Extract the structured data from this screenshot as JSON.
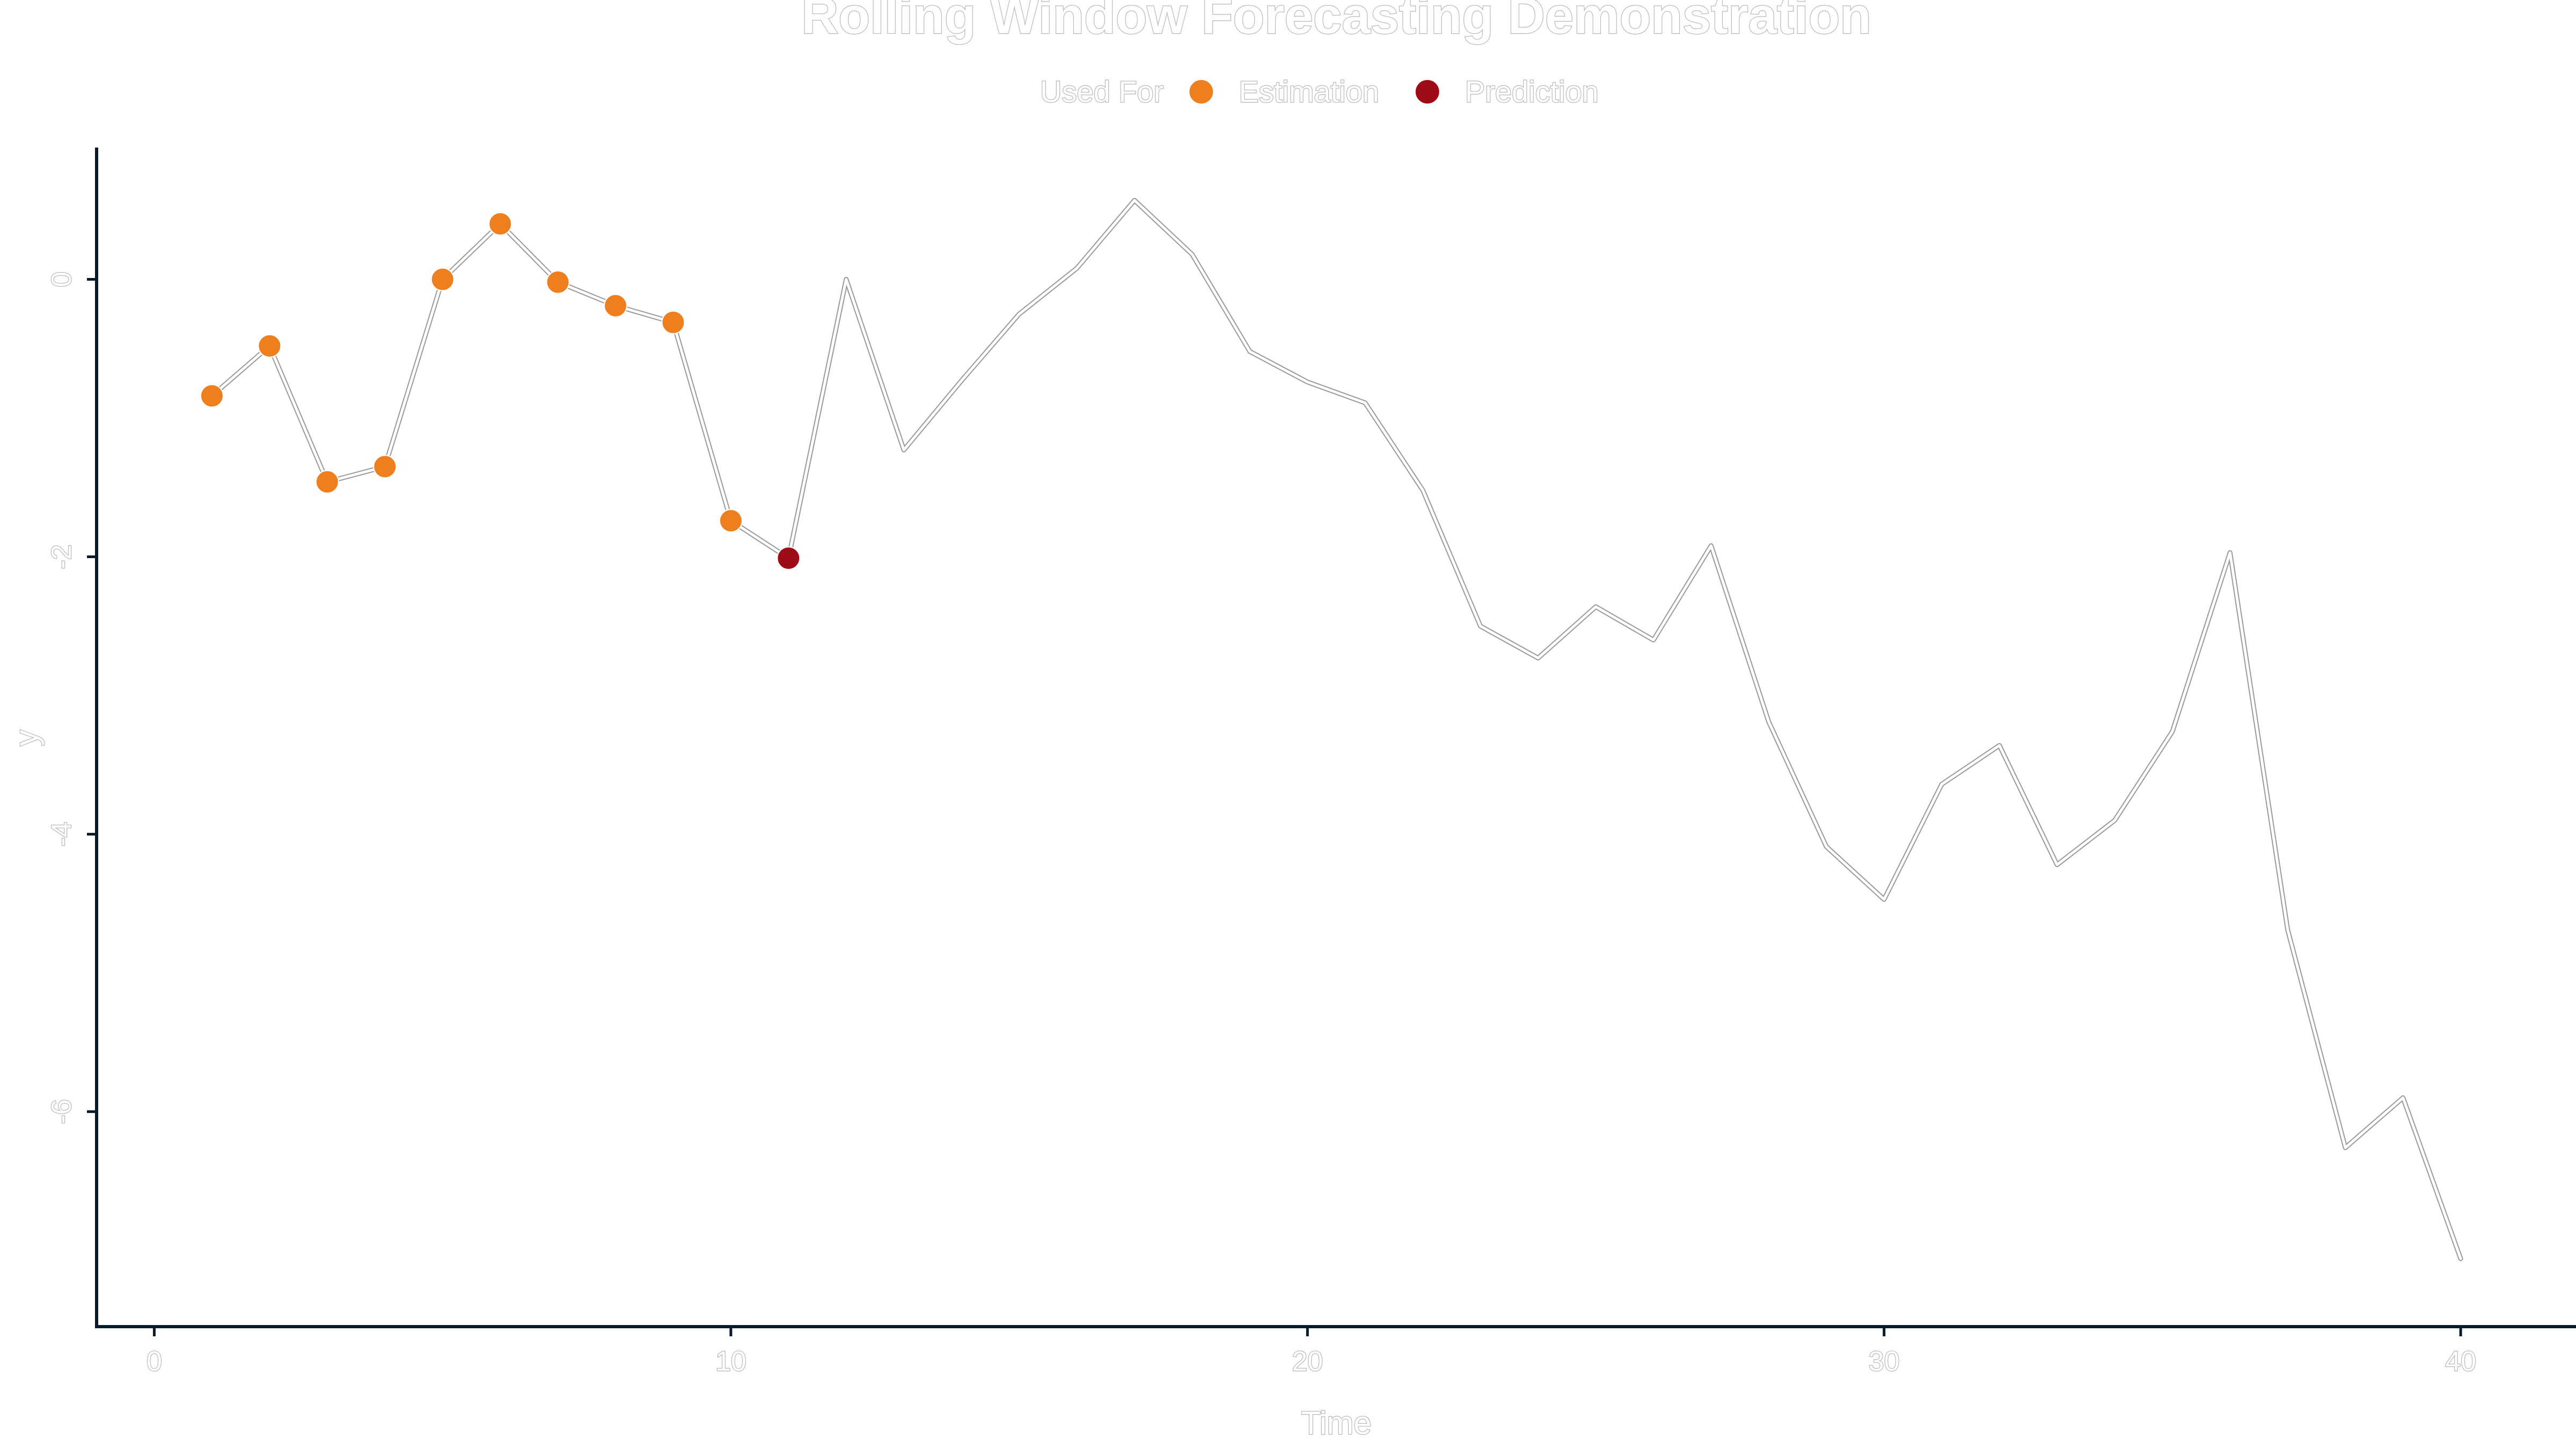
{
  "chart_data": {
    "type": "line",
    "title": "Rolling Window Forecasting Demonstration",
    "xlabel": "Time",
    "ylabel": "y",
    "xlim": [
      -1,
      42
    ],
    "ylim": [
      -7.55,
      0.95
    ],
    "x_ticks": [
      0,
      10,
      20,
      30,
      40
    ],
    "y_ticks": [
      0,
      -2,
      -4,
      -6
    ],
    "grid": false,
    "legend": {
      "title": "Used For",
      "position": "top",
      "entries": [
        {
          "label": "Estimation",
          "color": "#ee7f1f"
        },
        {
          "label": "Prediction",
          "color": "#a00c16"
        }
      ]
    },
    "line": {
      "x": [
        1,
        2,
        3,
        4,
        5,
        6,
        7,
        8,
        9,
        10,
        11,
        12,
        13,
        14,
        15,
        16,
        17,
        18,
        19,
        20,
        21,
        22,
        23,
        24,
        25,
        26,
        27,
        28,
        29,
        30,
        31,
        32,
        33,
        34,
        35,
        36,
        37,
        38,
        39,
        40
      ],
      "y": [
        -0.84,
        -0.48,
        -1.46,
        -1.35,
        0.0,
        0.4,
        -0.02,
        -0.19,
        -0.31,
        -1.74,
        -2.01,
        0.0,
        -1.23,
        -0.73,
        -0.25,
        0.08,
        0.57,
        0.18,
        -0.52,
        -0.74,
        -0.89,
        -1.52,
        -2.5,
        -2.73,
        -2.36,
        -2.6,
        -1.92,
        -3.19,
        -4.09,
        -4.47,
        -3.64,
        -3.36,
        -4.22,
        -3.9,
        -3.26,
        -1.97,
        -4.69,
        -6.26,
        -5.9,
        -7.06
      ]
    },
    "points": [
      {
        "x": 1,
        "y": -0.84,
        "used_for": "Estimation"
      },
      {
        "x": 2,
        "y": -0.48,
        "used_for": "Estimation"
      },
      {
        "x": 3,
        "y": -1.46,
        "used_for": "Estimation"
      },
      {
        "x": 4,
        "y": -1.35,
        "used_for": "Estimation"
      },
      {
        "x": 5,
        "y": 0.0,
        "used_for": "Estimation"
      },
      {
        "x": 6,
        "y": 0.4,
        "used_for": "Estimation"
      },
      {
        "x": 7,
        "y": -0.02,
        "used_for": "Estimation"
      },
      {
        "x": 8,
        "y": -0.19,
        "used_for": "Estimation"
      },
      {
        "x": 9,
        "y": -0.31,
        "used_for": "Estimation"
      },
      {
        "x": 10,
        "y": -1.74,
        "used_for": "Estimation"
      },
      {
        "x": 11,
        "y": -2.01,
        "used_for": "Prediction"
      }
    ]
  }
}
